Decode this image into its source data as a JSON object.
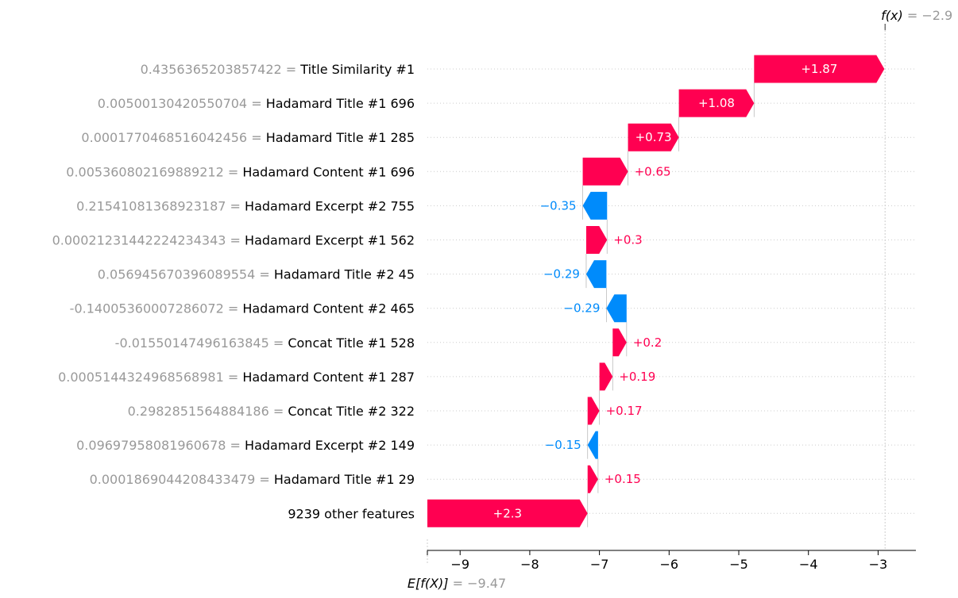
{
  "colors": {
    "positive": "#ff0051",
    "negative": "#008bfb",
    "muted_text": "#999999",
    "label_text": "#000000",
    "gridline": "#cccccc"
  },
  "chart_data": {
    "type": "waterfall",
    "base_value": -9.47,
    "base_value_display": "−9.47",
    "base_label": "E[f(X)]",
    "output_value": -2.9,
    "output_value_display": "−2.9",
    "output_label": "f(x)",
    "xlim": [
      -9.47,
      -2.5
    ],
    "x_ticks": [
      {
        "value": -9,
        "label": "−9"
      },
      {
        "value": -8,
        "label": "−8"
      },
      {
        "value": -7,
        "label": "−7"
      },
      {
        "value": -6,
        "label": "−6"
      },
      {
        "value": -5,
        "label": "−5"
      },
      {
        "value": -4,
        "label": "−4"
      },
      {
        "value": -3,
        "label": "−3"
      }
    ],
    "features": [
      {
        "feature_value": "0.4356365203857422",
        "feature": "Title Similarity #1",
        "shap": 1.87,
        "label": "+1.87"
      },
      {
        "feature_value": "0.00500130420550704",
        "feature": "Hadamard Title #1 696",
        "shap": 1.08,
        "label": "+1.08"
      },
      {
        "feature_value": "0.0001770468516042456",
        "feature": "Hadamard Title #1 285",
        "shap": 0.73,
        "label": "+0.73"
      },
      {
        "feature_value": "0.005360802169889212",
        "feature": "Hadamard Content #1 696",
        "shap": 0.65,
        "label": "+0.65"
      },
      {
        "feature_value": "0.21541081368923187",
        "feature": "Hadamard Excerpt #2 755",
        "shap": -0.35,
        "label": "−0.35"
      },
      {
        "feature_value": "0.00021231442224234343",
        "feature": "Hadamard Excerpt #1 562",
        "shap": 0.3,
        "label": "+0.3"
      },
      {
        "feature_value": "0.056945670396089554",
        "feature": "Hadamard Title #2 45",
        "shap": -0.29,
        "label": "−0.29"
      },
      {
        "feature_value": "-0.14005360007286072",
        "feature": "Hadamard Content #2 465",
        "shap": -0.29,
        "label": "−0.29"
      },
      {
        "feature_value": "-0.01550147496163845",
        "feature": "Concat Title #1 528",
        "shap": 0.2,
        "label": "+0.2"
      },
      {
        "feature_value": "0.0005144324968568981",
        "feature": "Hadamard Content #1 287",
        "shap": 0.19,
        "label": "+0.19"
      },
      {
        "feature_value": "0.2982851564884186",
        "feature": "Concat Title #2 322",
        "shap": 0.17,
        "label": "+0.17"
      },
      {
        "feature_value": "0.09697958081960678",
        "feature": "Hadamard Excerpt #2 149",
        "shap": -0.15,
        "label": "−0.15"
      },
      {
        "feature_value": "0.0001869044208433479",
        "feature": "Hadamard Title #1 29",
        "shap": 0.15,
        "label": "+0.15"
      },
      {
        "feature_value": "",
        "feature": "9239 other features",
        "shap": 2.3,
        "label": "+2.3"
      }
    ]
  }
}
